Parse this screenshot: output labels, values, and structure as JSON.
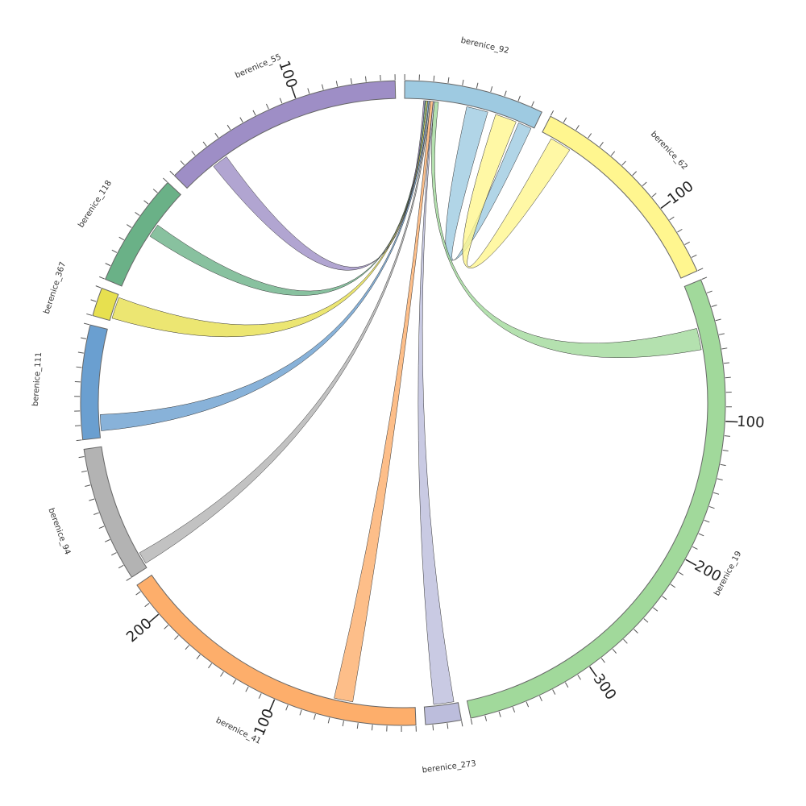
{
  "chart_data": {
    "type": "chord",
    "minor_tick_step": 10,
    "sectors": [
      {
        "name": "berenice_92",
        "size": 98,
        "color": "#9ecae1",
        "ticks": []
      },
      {
        "name": "berenice_62",
        "size": 150,
        "color": "#fff68f",
        "ticks": [
          100
        ]
      },
      {
        "name": "berenice_19",
        "size": 390,
        "color": "#a1d99b",
        "ticks": [
          100,
          200,
          300
        ]
      },
      {
        "name": "berenice_273",
        "size": 25,
        "color": "#bcbddc",
        "ticks": []
      },
      {
        "name": "berenice_41",
        "size": 225,
        "color": "#fdae6b",
        "ticks": [
          100,
          200
        ]
      },
      {
        "name": "berenice_94",
        "size": 95,
        "color": "#b3b3b3",
        "ticks": []
      },
      {
        "name": "berenice_111",
        "size": 80,
        "color": "#6a9fd0",
        "ticks": []
      },
      {
        "name": "berenice_367",
        "size": 20,
        "color": "#e7e04f",
        "ticks": []
      },
      {
        "name": "berenice_118",
        "size": 80,
        "color": "#6ab187",
        "ticks": []
      },
      {
        "name": "berenice_55",
        "size": 170,
        "color": "#9e8ec6",
        "ticks": [
          100
        ]
      }
    ],
    "links": [
      {
        "from": "berenice_92",
        "to": "berenice_92",
        "from_range": [
          46,
          62
        ],
        "to_range": [
          86,
          96
        ]
      },
      {
        "from": "berenice_92",
        "to": "berenice_62",
        "from_range": [
          68,
          84
        ],
        "to_range": [
          8,
          24
        ]
      },
      {
        "from": "berenice_92",
        "to": "berenice_19",
        "from_range": [
          22,
          25
        ],
        "to_range": [
          32,
          48
        ]
      },
      {
        "from": "berenice_92",
        "to": "berenice_273",
        "from_range": [
          21,
          22
        ],
        "to_range": [
          3,
          18
        ]
      },
      {
        "from": "berenice_92",
        "to": "berenice_41",
        "from_range": [
          19,
          21
        ],
        "to_range": [
          46,
          60
        ]
      },
      {
        "from": "berenice_92",
        "to": "berenice_94",
        "from_range": [
          18,
          19
        ],
        "to_range": [
          3,
          12
        ]
      },
      {
        "from": "berenice_92",
        "to": "berenice_111",
        "from_range": [
          17,
          18
        ],
        "to_range": [
          5,
          17
        ]
      },
      {
        "from": "berenice_92",
        "to": "berenice_367",
        "from_range": [
          16,
          17
        ],
        "to_range": [
          2,
          18
        ]
      },
      {
        "from": "berenice_92",
        "to": "berenice_118",
        "from_range": [
          15,
          16
        ],
        "to_range": [
          42,
          52
        ]
      },
      {
        "from": "berenice_92",
        "to": "berenice_55",
        "from_range": [
          14,
          15
        ],
        "to_range": [
          25,
          37
        ]
      }
    ]
  }
}
